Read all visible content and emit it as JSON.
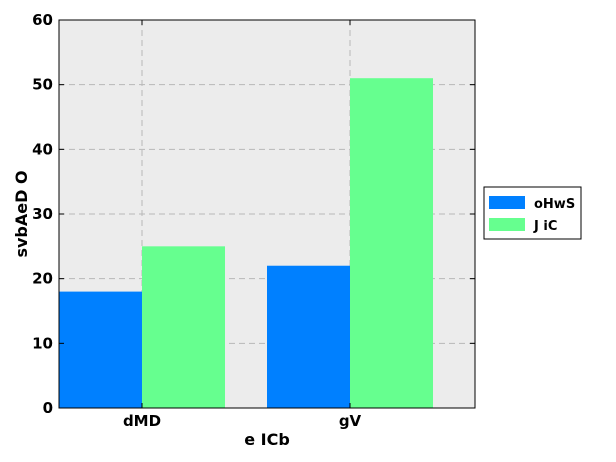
{
  "chart_data": {
    "type": "bar",
    "categories": [
      "dMD",
      "gV"
    ],
    "series": [
      {
        "name": "oHwS",
        "values": [
          18,
          22
        ],
        "color": "#0080ff"
      },
      {
        "name": "J iC",
        "values": [
          25,
          51
        ],
        "color": "#66ff8f"
      }
    ],
    "xlabel": "e  ICb",
    "ylabel": "svbAeD O",
    "ylim": [
      0,
      60
    ],
    "yticks": [
      0,
      10,
      20,
      30,
      40,
      50,
      60
    ],
    "grid": true,
    "legend_position": "right",
    "plot_background": "#ececec"
  }
}
